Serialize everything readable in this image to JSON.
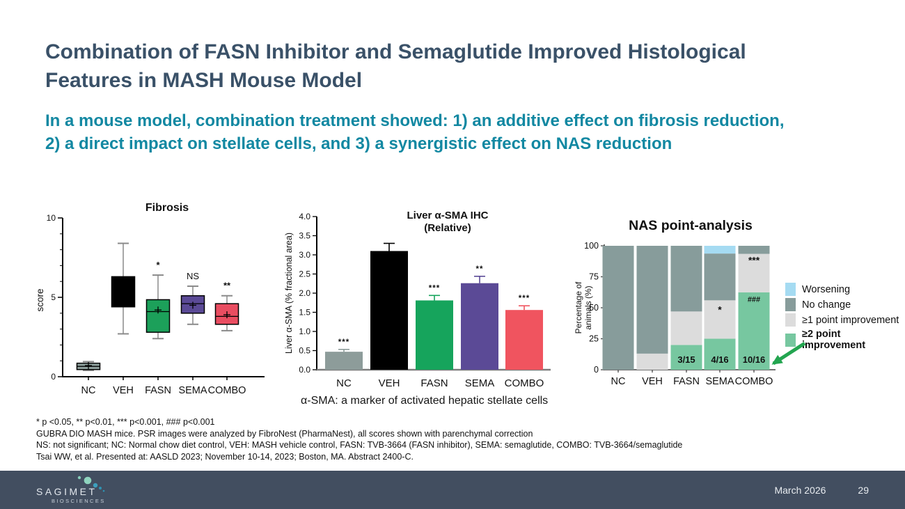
{
  "slide": {
    "title_lines": [
      "Combination of FASN Inhibitor and Semaglutide Improved Histological",
      "Features in MASH Mouse Model"
    ],
    "subtitle_lines": [
      "In a mouse model, combination treatment showed: 1) an additive effect on fibrosis reduction,",
      "2) a direct impact on stellate cells, and 3) a synergistic effect on NAS reduction"
    ],
    "colors": {
      "title": "#3a5168",
      "subtitle": "#1288a2",
      "footer_bg": "#424e60",
      "arrow_green": "#23a550"
    }
  },
  "chart_data": [
    {
      "type": "box",
      "title": "Fibrosis",
      "ylabel": "score",
      "ylim": [
        0,
        10
      ],
      "yticks": [
        0,
        5,
        10
      ],
      "yminor": 1,
      "categories": [
        "NC",
        "VEH",
        "FASN",
        "SEMA",
        "COMBO"
      ],
      "boxes": [
        {
          "min": 0.4,
          "q1": 0.45,
          "median": 0.65,
          "q3": 0.85,
          "max": 0.95,
          "mean": 0.7,
          "color": "#8d9e9b",
          "sig": ""
        },
        {
          "min": 2.7,
          "q1": 4.4,
          "median": 5.3,
          "q3": 6.3,
          "max": 8.4,
          "mean": 5.3,
          "color": "#000000",
          "sig": ""
        },
        {
          "min": 2.4,
          "q1": 2.8,
          "median": 4.1,
          "q3": 4.85,
          "max": 6.4,
          "mean": 4.2,
          "color": "#1ca05a",
          "sig": "*"
        },
        {
          "min": 3.3,
          "q1": 4.0,
          "median": 4.6,
          "q3": 5.1,
          "max": 5.7,
          "mean": 4.5,
          "color": "#5b4a96",
          "sig": "NS"
        },
        {
          "min": 2.9,
          "q1": 3.3,
          "median": 3.8,
          "q3": 4.6,
          "max": 5.1,
          "mean": 3.9,
          "color": "#e94d61",
          "sig": "**"
        }
      ]
    },
    {
      "type": "bar",
      "title": "Liver α-SMA IHC",
      "subtitle": "(Relative)",
      "ylabel": "Liver α-SMA (% fractional area)",
      "ylim": [
        0,
        4
      ],
      "ytick_step": 0.5,
      "categories": [
        "NC",
        "VEH",
        "FASN",
        "SEMA",
        "COMBO"
      ],
      "values": [
        0.47,
        3.1,
        1.81,
        2.26,
        1.56
      ],
      "errors": [
        0.06,
        0.2,
        0.13,
        0.18,
        0.11
      ],
      "colors": [
        "#8d9c9a",
        "#000000",
        "#16a45c",
        "#5b4a96",
        "#f0545f"
      ],
      "sig": [
        "***",
        "",
        "***",
        "**",
        "***"
      ],
      "sig_colors": [
        "#5a6e66",
        "",
        "#16a45c",
        "#5b4a96",
        "#f0545f"
      ],
      "caption": "α-SMA: a marker of activated hepatic stellate cells"
    },
    {
      "type": "stacked-bar",
      "title": "NAS point-analysis",
      "ylabel_lines": [
        "Percentage of",
        "animals (%)"
      ],
      "ylim": [
        0,
        100
      ],
      "yticks": [
        0,
        25,
        50,
        75,
        100
      ],
      "categories": [
        "NC",
        "VEH",
        "FASN",
        "SEMA",
        "COMBO"
      ],
      "series_bottom_to_top": [
        {
          "name": "≥2 point improvement",
          "color": "#77c7a0",
          "values": [
            0,
            0,
            20,
            25,
            62.5
          ]
        },
        {
          "name": "≥1 point improvement",
          "color": "#dcdcdc",
          "values": [
            0,
            13,
            27,
            31,
            31
          ]
        },
        {
          "name": "No change",
          "color": "#879c9b",
          "values": [
            100,
            87,
            53,
            37.75,
            6.5
          ]
        },
        {
          "name": "Worsening",
          "color": "#a5dbf2",
          "values": [
            0,
            0,
            0,
            6.25,
            0
          ]
        }
      ],
      "bar_labels": [
        "",
        "",
        "3/15",
        "4/16",
        "10/16"
      ],
      "annotations": [
        {
          "bar_index": 3,
          "text": "*",
          "y_pct": 48
        },
        {
          "bar_index": 4,
          "text": "###",
          "y_pct": 57
        },
        {
          "bar_index": 4,
          "text": "***",
          "y_pct": 88
        }
      ],
      "legend": [
        {
          "label": "Worsening",
          "color": "#a5dbf2",
          "bold": false
        },
        {
          "label": "No change",
          "color": "#879c9b",
          "bold": false
        },
        {
          "label": "≥1 point improvement",
          "color": "#dcdcdc",
          "bold": false
        },
        {
          "label": "≥2 point improvement",
          "color": "#77c7a0",
          "bold": true
        }
      ]
    }
  ],
  "footnotes": [
    "* p <0.05, ** p<0.01, *** p<0.001, ### p<0.001",
    "GUBRA DIO MASH mice. PSR images were analyzed by FibroNest (PharmaNest), all scores shown with parenchymal correction",
    "NS: not significant; NC: Normal chow diet control, VEH: MASH vehicle control, FASN: TVB-3664 (FASN inhibitor), SEMA: semaglutide, COMBO: TVB-3664/semaglutide",
    "Tsai WW, et al. Presented at: AASLD 2023; November 10-14, 2023; Boston, MA. Abstract 2400-C."
  ],
  "footer": {
    "logo_text": "SAGIMET",
    "logo_subtext": "BIOSCIENCES",
    "date": "March 2026",
    "page_number": "29"
  }
}
